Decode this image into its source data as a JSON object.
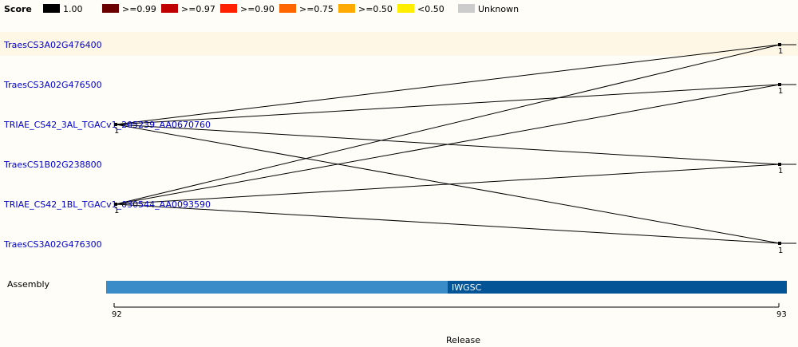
{
  "legend": {
    "title": "Score",
    "items": [
      {
        "label": "1.00",
        "color": "#000000"
      },
      {
        "label": ">=0.99",
        "color": "#6b0000"
      },
      {
        "label": ">=0.97",
        "color": "#c00000"
      },
      {
        "label": ">=0.90",
        "color": "#ff2000"
      },
      {
        "label": ">=0.75",
        "color": "#ff6600"
      },
      {
        "label": ">=0.50",
        "color": "#ffaa00"
      },
      {
        "label": "<0.50",
        "color": "#ffee00"
      },
      {
        "label": "Unknown",
        "color": "#cccccc"
      }
    ]
  },
  "genes": [
    "TraesCS3A02G476400",
    "TraesCS3A02G476500",
    "TRIAE_CS42_3AL_TGACv1_205239_AA0670760",
    "TraesCS1B02G238800",
    "TRIAE_CS42_1BL_TGACv1_030544_AA0093590",
    "TraesCS3A02G476300"
  ],
  "node_counts": {
    "left_a": "1",
    "left_b": "1",
    "right_1": "1",
    "right_2": "1",
    "right_4": "1",
    "right_6": "1"
  },
  "assembly": {
    "label": "Assembly",
    "name": "IWGSC",
    "color_start": "#3a8cc8",
    "color_end": "#035497"
  },
  "axis": {
    "title": "Release",
    "start": "92",
    "end": "93"
  }
}
